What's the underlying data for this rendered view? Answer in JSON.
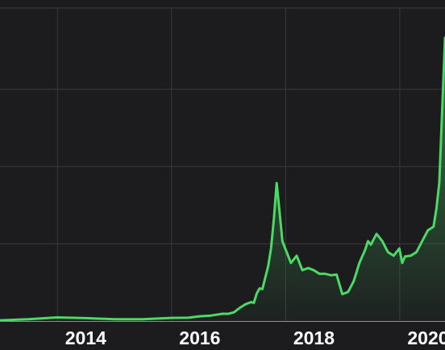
{
  "chart_data": {
    "type": "area",
    "x_tick_labels": [
      "2014",
      "2016",
      "2018",
      "2020"
    ],
    "x_ticks": [
      2014,
      2016,
      2018,
      2020
    ],
    "xlim": [
      2013.0,
      2020.8
    ],
    "ylim": [
      0,
      40000
    ],
    "grid": true,
    "colors": {
      "background": "#1c1c1e",
      "line": "#4cd964",
      "fill_top": "#3a8a4c",
      "grid": "#3a3a3c",
      "baseline": "#8e8e93",
      "tick_label": "#ffffff"
    },
    "series": [
      {
        "x": [
          2013.0,
          2013.5,
          2014.0,
          2014.5,
          2015.0,
          2015.5,
          2016.0,
          2016.3,
          2016.5,
          2016.7,
          2016.9,
          2017.0,
          2017.1,
          2017.2,
          2017.3,
          2017.4,
          2017.45,
          2017.5,
          2017.55,
          2017.6,
          2017.65,
          2017.7,
          2017.75,
          2017.8,
          2017.85,
          2017.9,
          2017.95,
          2018.0,
          2018.1,
          2018.2,
          2018.3,
          2018.4,
          2018.5,
          2018.6,
          2018.7,
          2018.8,
          2018.9,
          2019.0,
          2019.1,
          2019.2,
          2019.3,
          2019.4,
          2019.45,
          2019.5,
          2019.6,
          2019.7,
          2019.8,
          2019.9,
          2020.0,
          2020.05,
          2020.1,
          2020.2,
          2020.3,
          2020.4,
          2020.5,
          2020.6,
          2020.65,
          2020.7,
          2020.75,
          2020.8
        ],
        "values": [
          100,
          250,
          500,
          400,
          250,
          250,
          430,
          450,
          650,
          750,
          1000,
          1000,
          1200,
          1800,
          2300,
          2600,
          2500,
          3800,
          4500,
          4400,
          6000,
          7500,
          10000,
          14000,
          19000,
          15000,
          11000,
          10000,
          8000,
          9000,
          7000,
          7300,
          7000,
          6500,
          6500,
          6300,
          6400,
          3700,
          4000,
          5500,
          8000,
          9800,
          11000,
          10500,
          12000,
          11000,
          9500,
          9000,
          10000,
          8000,
          8900,
          9000,
          9500,
          11000,
          12500,
          13000,
          15500,
          19000,
          29000,
          39000
        ]
      }
    ]
  }
}
